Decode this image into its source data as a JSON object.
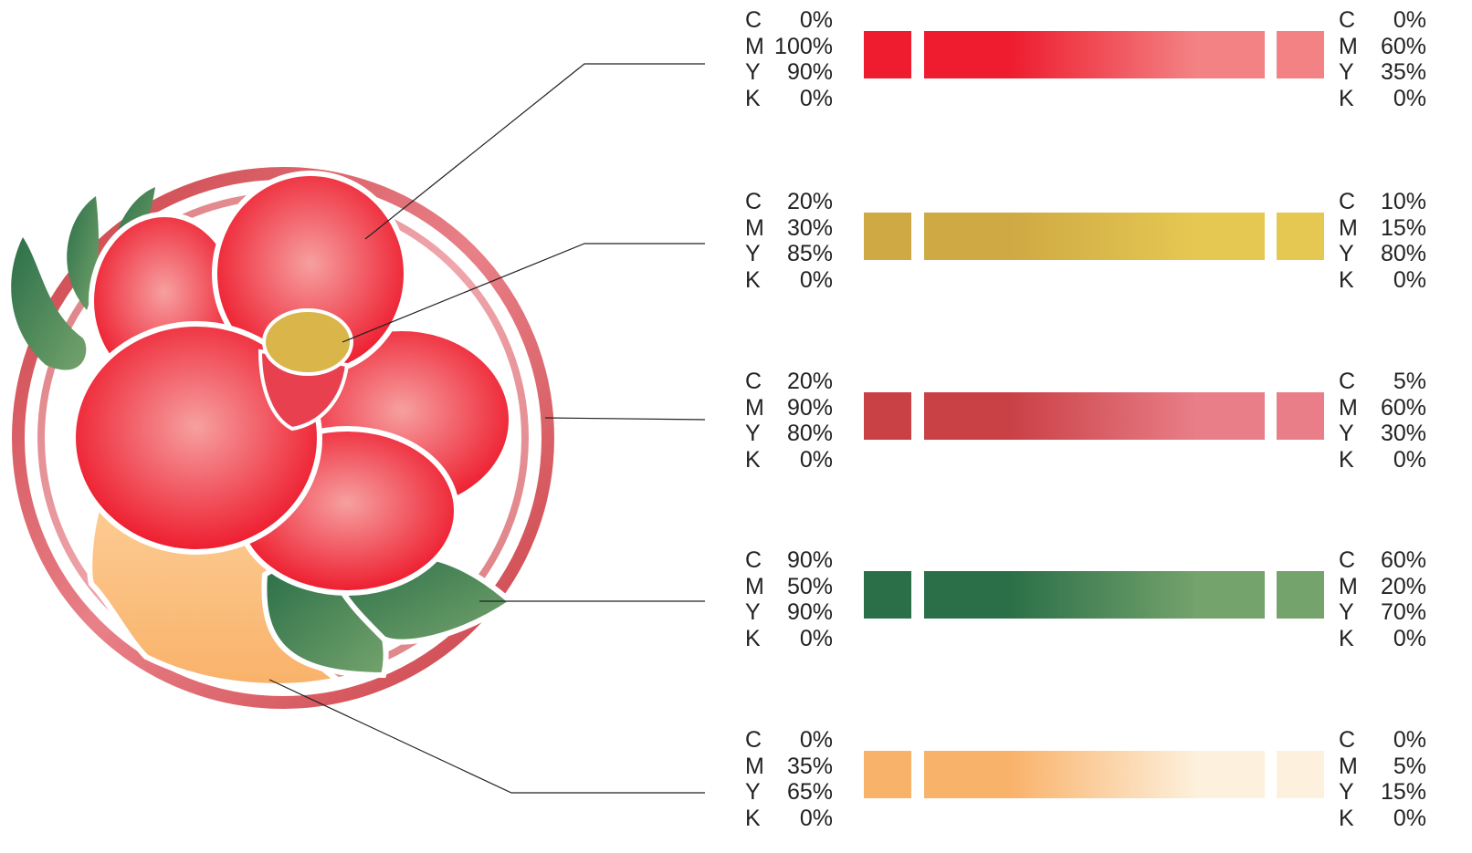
{
  "channels": [
    "C",
    "M",
    "Y",
    "K"
  ],
  "rows": [
    {
      "start": {
        "values": [
          "0%",
          "100%",
          "90%",
          "0%"
        ],
        "color": "#ee1c2e"
      },
      "end": {
        "values": [
          "0%",
          "60%",
          "35%",
          "0%"
        ],
        "color": "#f38284"
      }
    },
    {
      "start": {
        "values": [
          "20%",
          "30%",
          "85%",
          "0%"
        ],
        "color": "#cfa944"
      },
      "end": {
        "values": [
          "10%",
          "15%",
          "80%",
          "0%"
        ],
        "color": "#e5c852"
      }
    },
    {
      "start": {
        "values": [
          "20%",
          "90%",
          "80%",
          "0%"
        ],
        "color": "#c94045"
      },
      "end": {
        "values": [
          "5%",
          "60%",
          "30%",
          "0%"
        ],
        "color": "#e97e88"
      }
    },
    {
      "start": {
        "values": [
          "90%",
          "50%",
          "90%",
          "0%"
        ],
        "color": "#2b6f48"
      },
      "end": {
        "values": [
          "60%",
          "20%",
          "70%",
          "0%"
        ],
        "color": "#74a36c"
      }
    },
    {
      "start": {
        "values": [
          "0%",
          "35%",
          "65%",
          "0%"
        ],
        "color": "#f9b26a"
      },
      "end": {
        "values": [
          "0%",
          "5%",
          "15%",
          "0%"
        ],
        "color": "#fdf0dc"
      }
    }
  ]
}
